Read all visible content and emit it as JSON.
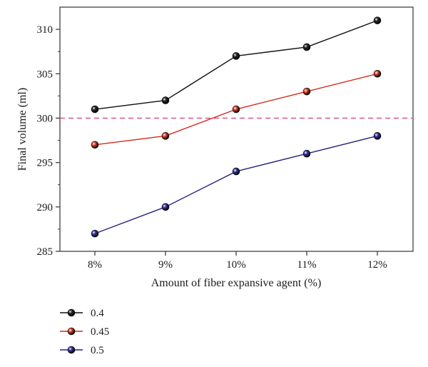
{
  "chart_data": {
    "type": "line",
    "categories": [
      "8%",
      "9%",
      "10%",
      "11%",
      "12%"
    ],
    "xlabel": "Amount of fiber expansive agent (%)",
    "ylabel": "Final volume (ml)",
    "ylim": [
      285,
      312.5
    ],
    "yticks": [
      285,
      290,
      295,
      300,
      305,
      310
    ],
    "reference_line": {
      "y": 300,
      "style": "dashed",
      "color": "#d9568a"
    },
    "grid": false,
    "legend_position": "bottom-left",
    "series": [
      {
        "name": "0.4",
        "values": [
          301,
          302,
          307,
          308,
          311
        ],
        "color": "#111111",
        "marker_color": "#2b2b2b"
      },
      {
        "name": "0.45",
        "values": [
          297,
          298,
          301,
          303,
          305
        ],
        "color": "#d42a1c",
        "marker_color": "#e0432c"
      },
      {
        "name": "0.5",
        "values": [
          287,
          290,
          294,
          296,
          298
        ],
        "color": "#25237f",
        "marker_color": "#3b3aa8"
      }
    ]
  }
}
